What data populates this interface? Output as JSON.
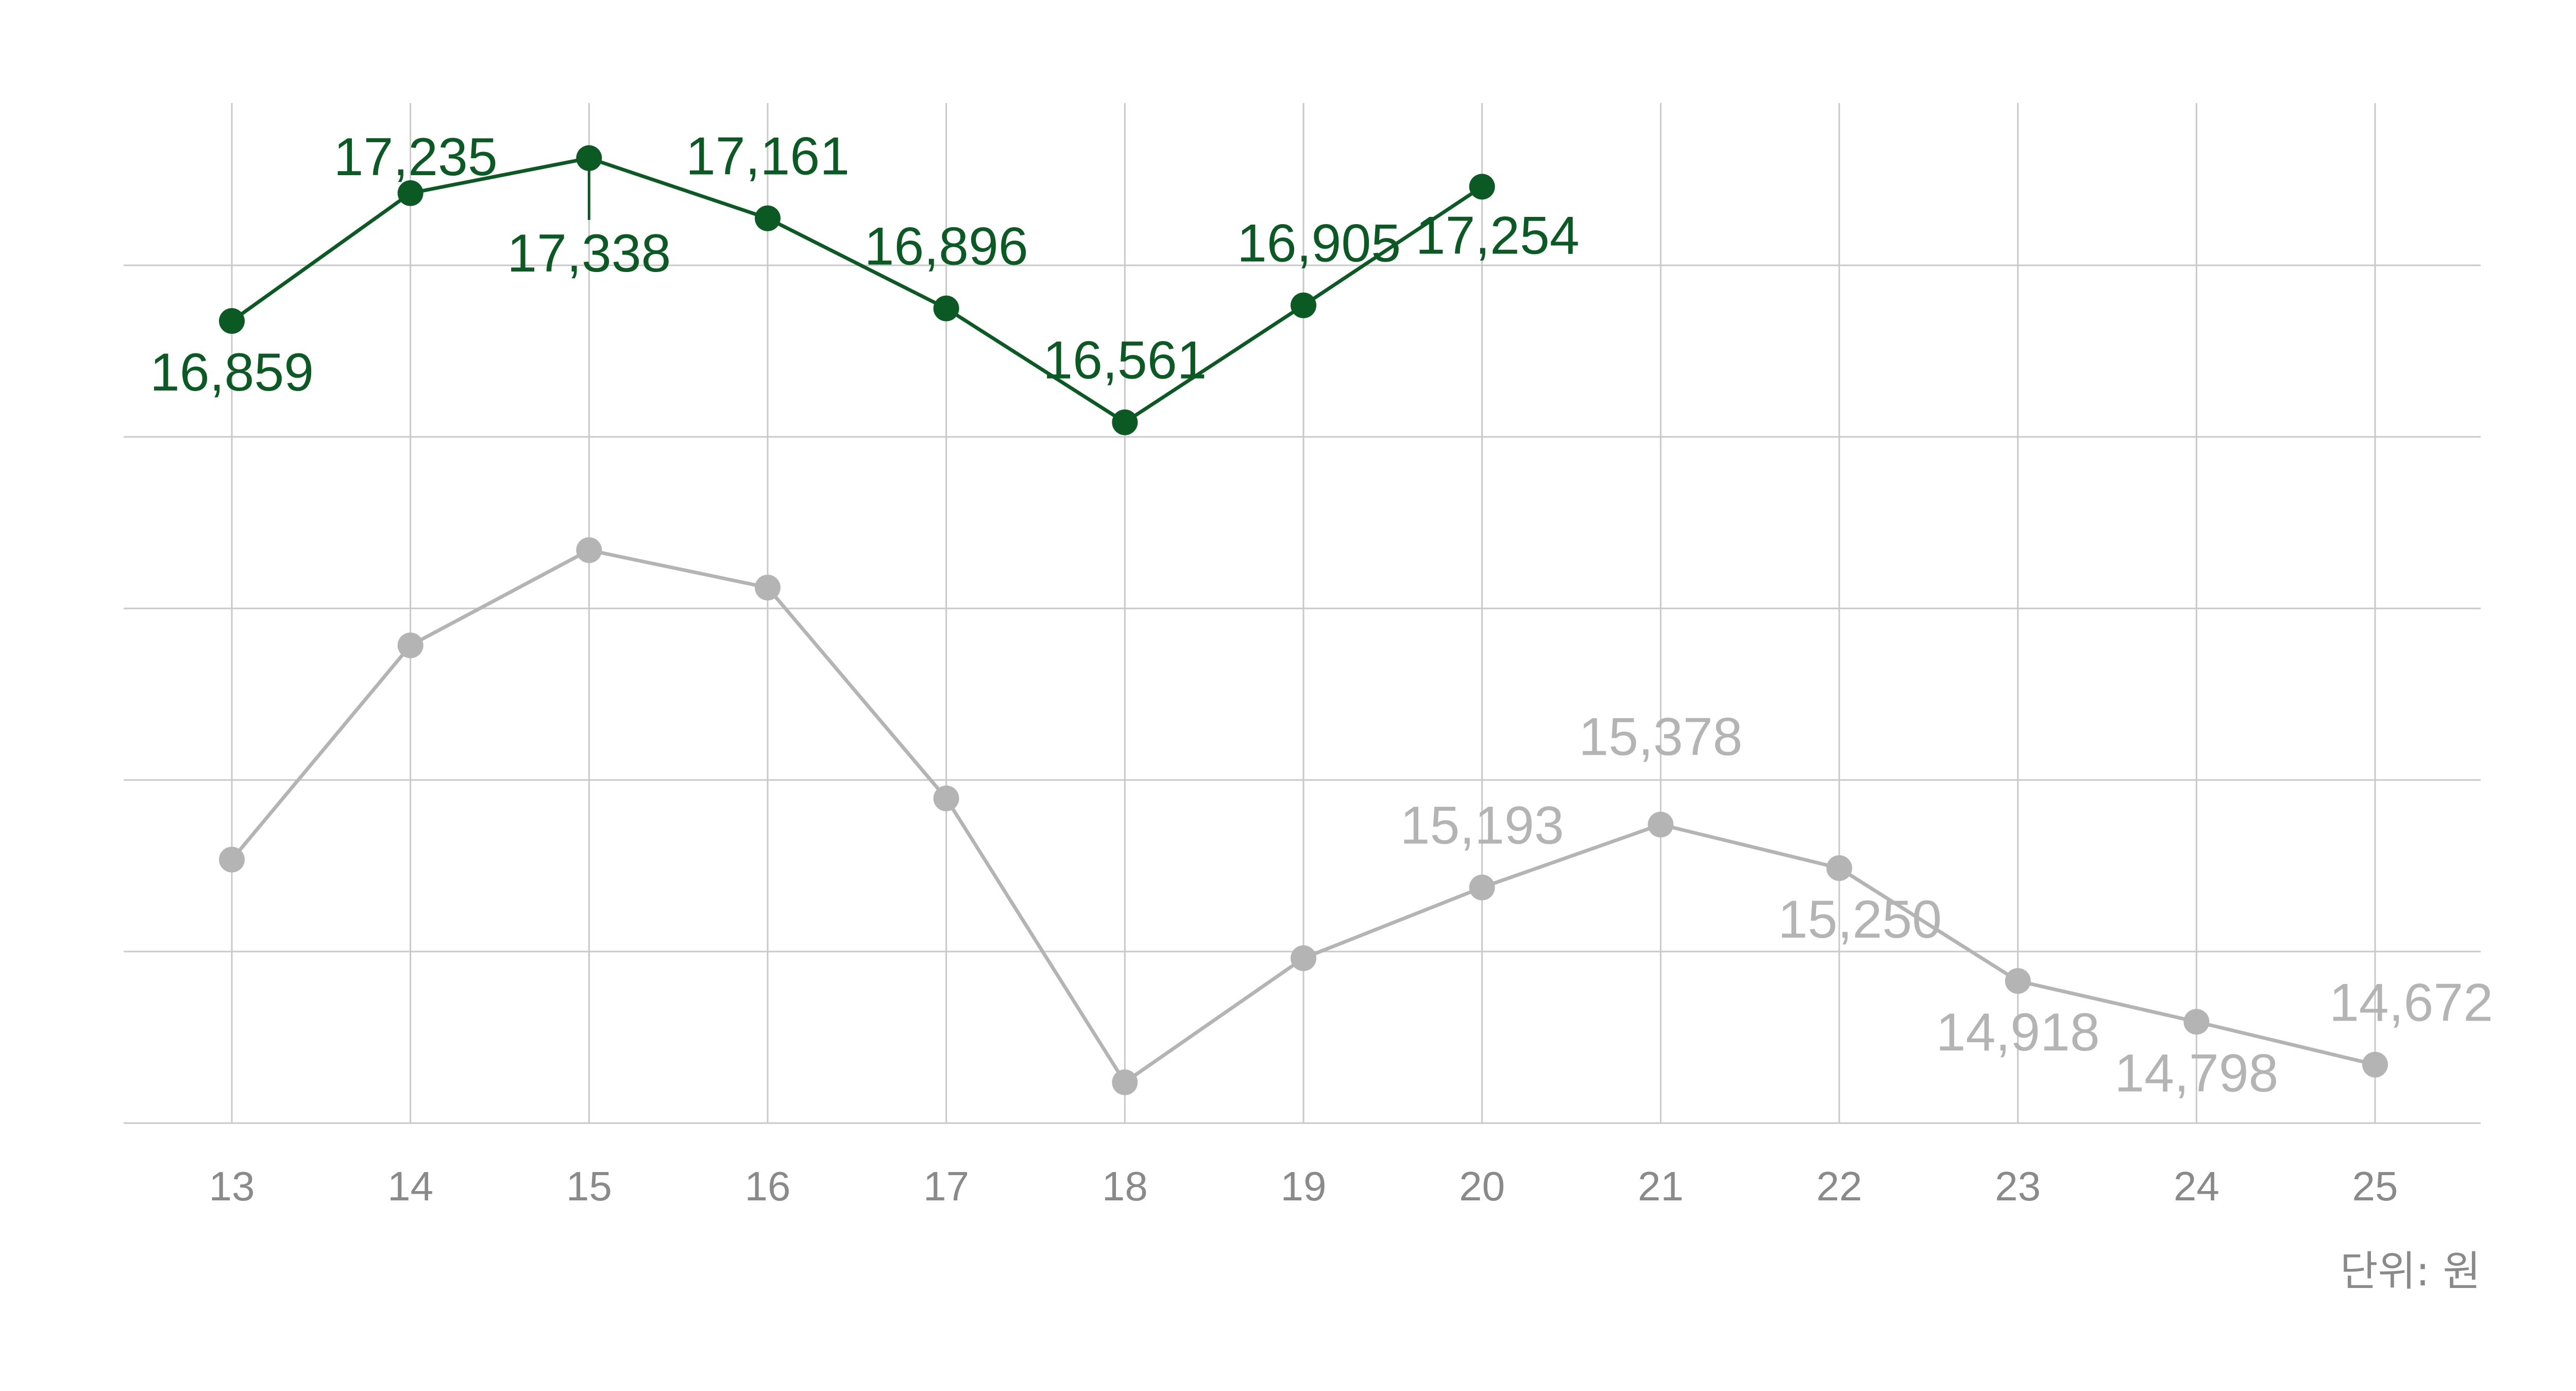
{
  "chart_data": {
    "type": "line",
    "x": [
      "13",
      "14",
      "15",
      "16",
      "17",
      "18",
      "19",
      "20",
      "21",
      "22",
      "23",
      "24",
      "25"
    ],
    "ylim": [
      14500,
      17500
    ],
    "grid": true,
    "unit_label": "단위: 원",
    "series": [
      {
        "color": "#0b5a24",
        "values": [
          16859,
          17235,
          17338,
          17161,
          16896,
          16561,
          16905,
          17254,
          null,
          null,
          null,
          null,
          null
        ],
        "labels": [
          "16,859",
          "17,235",
          "17,338",
          "17,161",
          "16,896",
          "16,561",
          "16,905",
          "17,254",
          "",
          "",
          "",
          "",
          ""
        ]
      },
      {
        "color": "#b4b4b4",
        "values": [
          15275,
          15905,
          16185,
          16075,
          15455,
          14620,
          14985,
          15193,
          15378,
          15250,
          14918,
          14798,
          14672
        ],
        "labels": [
          "",
          "",
          "",
          "",
          "",
          "",
          "",
          "15,193",
          "15,378",
          "15,250",
          "14,918",
          "14,798",
          "14,672"
        ]
      }
    ]
  }
}
